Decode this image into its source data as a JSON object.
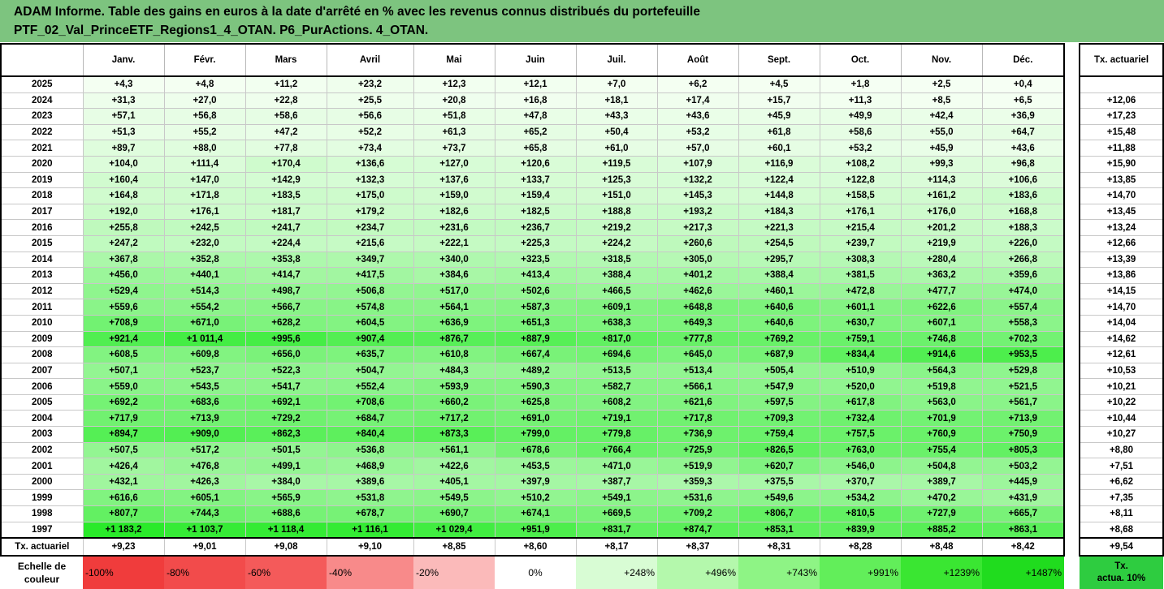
{
  "title_line1": "ADAM Informe. Table des gains en euros à la date d'arrêté en % avec les revenus connus distribués du portefeuille",
  "title_line2": "PTF_02_Val_PrinceETF_Regions1_4_OTAN. P6_PurActions. 4_OTAN.",
  "months": [
    "Janv.",
    "Févr.",
    "Mars",
    "Avril",
    "Mai",
    "Juin",
    "Juil.",
    "Août",
    "Sept.",
    "Oct.",
    "Nov.",
    "Déc."
  ],
  "side_header": "Tx. actuariel",
  "rows": [
    {
      "year": "2025",
      "values": [
        "+4,3",
        "+4,8",
        "+11,2",
        "+23,2",
        "+12,3",
        "+12,1",
        "+7,0",
        "+6,2",
        "+4,5",
        "+1,8",
        "+2,5",
        "+0,4"
      ],
      "tx": ""
    },
    {
      "year": "2024",
      "values": [
        "+31,3",
        "+27,0",
        "+22,8",
        "+25,5",
        "+20,8",
        "+16,8",
        "+18,1",
        "+17,4",
        "+15,7",
        "+11,3",
        "+8,5",
        "+6,5"
      ],
      "tx": "+12,06"
    },
    {
      "year": "2023",
      "values": [
        "+57,1",
        "+56,8",
        "+58,6",
        "+56,6",
        "+51,8",
        "+47,8",
        "+43,3",
        "+43,6",
        "+45,9",
        "+49,9",
        "+42,4",
        "+36,9"
      ],
      "tx": "+17,23"
    },
    {
      "year": "2022",
      "values": [
        "+51,3",
        "+55,2",
        "+47,2",
        "+52,2",
        "+61,3",
        "+65,2",
        "+50,4",
        "+53,2",
        "+61,8",
        "+58,6",
        "+55,0",
        "+64,7"
      ],
      "tx": "+15,48"
    },
    {
      "year": "2021",
      "values": [
        "+89,7",
        "+88,0",
        "+77,8",
        "+73,4",
        "+73,7",
        "+65,8",
        "+61,0",
        "+57,0",
        "+60,1",
        "+53,2",
        "+45,9",
        "+43,6"
      ],
      "tx": "+11,88"
    },
    {
      "year": "2020",
      "values": [
        "+104,0",
        "+111,4",
        "+170,4",
        "+136,6",
        "+127,0",
        "+120,6",
        "+119,5",
        "+107,9",
        "+116,9",
        "+108,2",
        "+99,3",
        "+96,8"
      ],
      "tx": "+15,90"
    },
    {
      "year": "2019",
      "values": [
        "+160,4",
        "+147,0",
        "+142,9",
        "+132,3",
        "+137,6",
        "+133,7",
        "+125,3",
        "+132,2",
        "+122,4",
        "+122,8",
        "+114,3",
        "+106,6"
      ],
      "tx": "+13,85"
    },
    {
      "year": "2018",
      "values": [
        "+164,8",
        "+171,8",
        "+183,5",
        "+175,0",
        "+159,0",
        "+159,4",
        "+151,0",
        "+145,3",
        "+144,8",
        "+158,5",
        "+161,2",
        "+183,6"
      ],
      "tx": "+14,70"
    },
    {
      "year": "2017",
      "values": [
        "+192,0",
        "+176,1",
        "+181,7",
        "+179,2",
        "+182,6",
        "+182,5",
        "+188,8",
        "+193,2",
        "+184,3",
        "+176,1",
        "+176,0",
        "+168,8"
      ],
      "tx": "+13,45"
    },
    {
      "year": "2016",
      "values": [
        "+255,8",
        "+242,5",
        "+241,7",
        "+234,7",
        "+231,6",
        "+236,7",
        "+219,2",
        "+217,3",
        "+221,3",
        "+215,4",
        "+201,2",
        "+188,3"
      ],
      "tx": "+13,24"
    },
    {
      "year": "2015",
      "values": [
        "+247,2",
        "+232,0",
        "+224,4",
        "+215,6",
        "+222,1",
        "+225,3",
        "+224,2",
        "+260,6",
        "+254,5",
        "+239,7",
        "+219,9",
        "+226,0"
      ],
      "tx": "+12,66"
    },
    {
      "year": "2014",
      "values": [
        "+367,8",
        "+352,8",
        "+353,8",
        "+349,7",
        "+340,0",
        "+323,5",
        "+318,5",
        "+305,0",
        "+295,7",
        "+308,3",
        "+280,4",
        "+266,8"
      ],
      "tx": "+13,39"
    },
    {
      "year": "2013",
      "values": [
        "+456,0",
        "+440,1",
        "+414,7",
        "+417,5",
        "+384,6",
        "+413,4",
        "+388,4",
        "+401,2",
        "+388,4",
        "+381,5",
        "+363,2",
        "+359,6"
      ],
      "tx": "+13,86"
    },
    {
      "year": "2012",
      "values": [
        "+529,4",
        "+514,3",
        "+498,7",
        "+506,8",
        "+517,0",
        "+502,6",
        "+466,5",
        "+462,6",
        "+460,1",
        "+472,8",
        "+477,7",
        "+474,0"
      ],
      "tx": "+14,15"
    },
    {
      "year": "2011",
      "values": [
        "+559,6",
        "+554,2",
        "+566,7",
        "+574,8",
        "+564,1",
        "+587,3",
        "+609,1",
        "+648,8",
        "+640,6",
        "+601,1",
        "+622,6",
        "+557,4"
      ],
      "tx": "+14,70"
    },
    {
      "year": "2010",
      "values": [
        "+708,9",
        "+671,0",
        "+628,2",
        "+604,5",
        "+636,9",
        "+651,3",
        "+638,3",
        "+649,3",
        "+640,6",
        "+630,7",
        "+607,1",
        "+558,3"
      ],
      "tx": "+14,04"
    },
    {
      "year": "2009",
      "values": [
        "+921,4",
        "+1 011,4",
        "+995,6",
        "+907,4",
        "+876,7",
        "+887,9",
        "+817,0",
        "+777,8",
        "+769,2",
        "+759,1",
        "+746,8",
        "+702,3"
      ],
      "tx": "+14,62"
    },
    {
      "year": "2008",
      "values": [
        "+608,5",
        "+609,8",
        "+656,0",
        "+635,7",
        "+610,8",
        "+667,4",
        "+694,6",
        "+645,0",
        "+687,9",
        "+834,4",
        "+914,6",
        "+953,5"
      ],
      "tx": "+12,61"
    },
    {
      "year": "2007",
      "values": [
        "+507,1",
        "+523,7",
        "+522,3",
        "+504,7",
        "+484,3",
        "+489,2",
        "+513,5",
        "+513,4",
        "+505,4",
        "+510,9",
        "+564,3",
        "+529,8"
      ],
      "tx": "+10,53"
    },
    {
      "year": "2006",
      "values": [
        "+559,0",
        "+543,5",
        "+541,7",
        "+552,4",
        "+593,9",
        "+590,3",
        "+582,7",
        "+566,1",
        "+547,9",
        "+520,0",
        "+519,8",
        "+521,5"
      ],
      "tx": "+10,21"
    },
    {
      "year": "2005",
      "values": [
        "+692,2",
        "+683,6",
        "+692,1",
        "+708,6",
        "+660,2",
        "+625,8",
        "+608,2",
        "+621,6",
        "+597,5",
        "+617,8",
        "+563,0",
        "+561,7"
      ],
      "tx": "+10,22"
    },
    {
      "year": "2004",
      "values": [
        "+717,9",
        "+713,9",
        "+729,2",
        "+684,7",
        "+717,2",
        "+691,0",
        "+719,1",
        "+717,8",
        "+709,3",
        "+732,4",
        "+701,9",
        "+713,9"
      ],
      "tx": "+10,44"
    },
    {
      "year": "2003",
      "values": [
        "+894,7",
        "+909,0",
        "+862,3",
        "+840,4",
        "+873,3",
        "+799,0",
        "+779,8",
        "+736,9",
        "+759,4",
        "+757,5",
        "+760,9",
        "+750,9"
      ],
      "tx": "+10,27"
    },
    {
      "year": "2002",
      "values": [
        "+507,5",
        "+517,2",
        "+501,5",
        "+536,8",
        "+561,1",
        "+678,6",
        "+766,4",
        "+725,9",
        "+826,5",
        "+763,0",
        "+755,4",
        "+805,3"
      ],
      "tx": "+8,80"
    },
    {
      "year": "2001",
      "values": [
        "+426,4",
        "+476,8",
        "+499,1",
        "+468,9",
        "+422,6",
        "+453,5",
        "+471,0",
        "+519,9",
        "+620,7",
        "+546,0",
        "+504,8",
        "+503,2"
      ],
      "tx": "+7,51"
    },
    {
      "year": "2000",
      "values": [
        "+432,1",
        "+426,3",
        "+384,0",
        "+389,6",
        "+405,1",
        "+397,9",
        "+387,7",
        "+359,3",
        "+375,5",
        "+370,7",
        "+389,7",
        "+445,9"
      ],
      "tx": "+6,62"
    },
    {
      "year": "1999",
      "values": [
        "+616,6",
        "+605,1",
        "+565,9",
        "+531,8",
        "+549,5",
        "+510,2",
        "+549,1",
        "+531,6",
        "+549,6",
        "+534,2",
        "+470,2",
        "+431,9"
      ],
      "tx": "+7,35"
    },
    {
      "year": "1998",
      "values": [
        "+807,7",
        "+744,3",
        "+688,6",
        "+678,7",
        "+690,7",
        "+674,1",
        "+669,5",
        "+709,2",
        "+806,7",
        "+810,5",
        "+727,9",
        "+665,7"
      ],
      "tx": "+8,11"
    },
    {
      "year": "1997",
      "values": [
        "+1 183,2",
        "+1 103,7",
        "+1 118,4",
        "+1 116,1",
        "+1 029,4",
        "+951,9",
        "+831,7",
        "+874,7",
        "+853,1",
        "+839,9",
        "+885,2",
        "+863,1"
      ],
      "tx": "+8,68"
    }
  ],
  "tx_row": {
    "label": "Tx. actuariel",
    "values": [
      "+9,23",
      "+9,01",
      "+9,08",
      "+9,10",
      "+8,85",
      "+8,60",
      "+8,17",
      "+8,37",
      "+8,31",
      "+8,28",
      "+8,48",
      "+8,42"
    ],
    "tx": "+9,54"
  },
  "legend": {
    "label_line1": "Echelle de",
    "label_line2": "couleur",
    "items": [
      {
        "text": "-100%",
        "color": "#f03c3c"
      },
      {
        "text": "-80%",
        "color": "#f24b4b"
      },
      {
        "text": "-60%",
        "color": "#f45a5a"
      },
      {
        "text": "-40%",
        "color": "#f88a8a"
      },
      {
        "text": "-20%",
        "color": "#fbbaba"
      },
      {
        "text": "0%",
        "color": "#ffffff"
      },
      {
        "text": "+248%",
        "color": "#d8fcd4"
      },
      {
        "text": "+496%",
        "color": "#b4f8ac"
      },
      {
        "text": "+743%",
        "color": "#8ef485"
      },
      {
        "text": "+991%",
        "color": "#62ee5a"
      },
      {
        "text": "+1239%",
        "color": "#3ae632"
      },
      {
        "text": "+1487%",
        "color": "#20dc1e"
      }
    ],
    "side_line1": "Tx.",
    "side_line2": "actua. 10%"
  }
}
